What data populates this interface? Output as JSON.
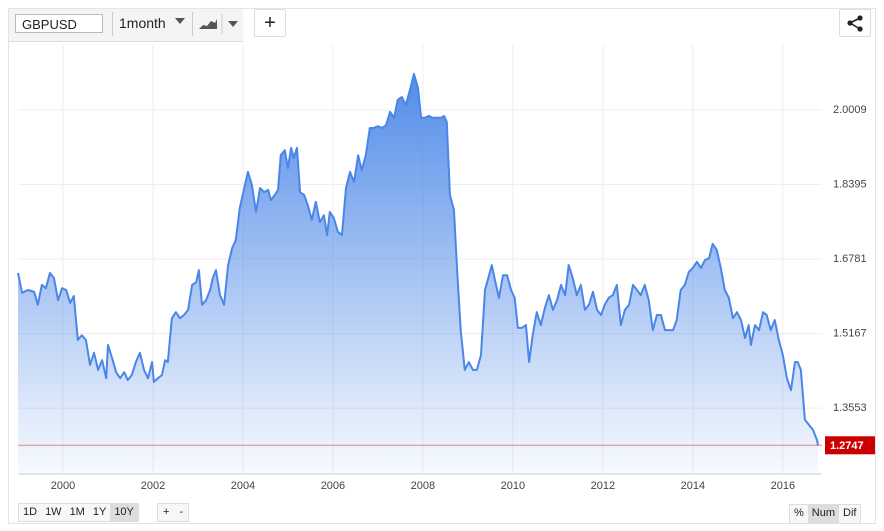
{
  "toolbar": {
    "symbol": "GBPUSD",
    "interval": "1month",
    "add": "+"
  },
  "range_buttons": [
    "1D",
    "1W",
    "1M",
    "1Y",
    "10Y"
  ],
  "zoom_buttons": [
    "+",
    "-"
  ],
  "mode_buttons": [
    "%",
    "Num",
    "Dif"
  ],
  "chart_data": {
    "type": "area",
    "x": [
      1999.0,
      1999.09,
      1999.22,
      1999.36,
      1999.44,
      1999.53,
      1999.62,
      1999.71,
      1999.8,
      1999.89,
      1999.98,
      2000.07,
      2000.16,
      2000.24,
      2000.33,
      2000.42,
      2000.51,
      2000.6,
      2000.69,
      2000.78,
      2000.87,
      2000.96,
      2001.0,
      2001.09,
      2001.18,
      2001.27,
      2001.36,
      2001.44,
      2001.53,
      2001.62,
      2001.71,
      2001.8,
      2001.89,
      2001.98,
      2002.02,
      2002.11,
      2002.2,
      2002.27,
      2002.33,
      2002.42,
      2002.51,
      2002.6,
      2002.69,
      2002.78,
      2002.87,
      2002.96,
      2003.02,
      2003.09,
      2003.18,
      2003.27,
      2003.33,
      2003.4,
      2003.49,
      2003.58,
      2003.67,
      2003.76,
      2003.84,
      2003.93,
      2004.02,
      2004.11,
      2004.2,
      2004.29,
      2004.38,
      2004.47,
      2004.56,
      2004.62,
      2004.71,
      2004.78,
      2004.84,
      2004.93,
      2005.0,
      2005.07,
      2005.13,
      2005.2,
      2005.27,
      2005.36,
      2005.44,
      2005.53,
      2005.62,
      2005.71,
      2005.8,
      2005.87,
      2005.93,
      2006.02,
      2006.11,
      2006.2,
      2006.29,
      2006.38,
      2006.47,
      2006.56,
      2006.64,
      2006.73,
      2006.82,
      2006.91,
      2007.0,
      2007.09,
      2007.18,
      2007.27,
      2007.36,
      2007.44,
      2007.53,
      2007.62,
      2007.71,
      2007.8,
      2007.89,
      2007.96,
      2008.04,
      2008.13,
      2008.22,
      2008.31,
      2008.4,
      2008.47,
      2008.53,
      2008.6,
      2008.69,
      2008.76,
      2008.84,
      2008.93,
      2009.02,
      2009.11,
      2009.2,
      2009.29,
      2009.38,
      2009.47,
      2009.53,
      2009.6,
      2009.69,
      2009.78,
      2009.87,
      2009.96,
      2010.04,
      2010.11,
      2010.2,
      2010.29,
      2010.36,
      2010.44,
      2010.53,
      2010.62,
      2010.71,
      2010.8,
      2010.89,
      2010.98,
      2011.07,
      2011.16,
      2011.24,
      2011.33,
      2011.42,
      2011.51,
      2011.6,
      2011.69,
      2011.78,
      2011.87,
      2011.96,
      2012.04,
      2012.13,
      2012.22,
      2012.31,
      2012.4,
      2012.49,
      2012.58,
      2012.67,
      2012.76,
      2012.84,
      2012.93,
      2013.02,
      2013.11,
      2013.2,
      2013.29,
      2013.38,
      2013.47,
      2013.56,
      2013.64,
      2013.73,
      2013.82,
      2013.91,
      2014.0,
      2014.09,
      2014.18,
      2014.27,
      2014.36,
      2014.44,
      2014.53,
      2014.62,
      2014.71,
      2014.8,
      2014.89,
      2014.98,
      2015.07,
      2015.16,
      2015.24,
      2015.29,
      2015.38,
      2015.47,
      2015.56,
      2015.64,
      2015.73,
      2015.82,
      2015.91,
      2016.0,
      2016.09,
      2016.18,
      2016.27,
      2016.33,
      2016.4,
      2016.49,
      2016.58,
      2016.67,
      2016.76,
      2016.78
    ],
    "series": [
      {
        "name": "GBPUSD",
        "color": "#4a86e8",
        "values": [
          1.648,
          1.605,
          1.611,
          1.607,
          1.579,
          1.622,
          1.615,
          1.648,
          1.637,
          1.589,
          1.615,
          1.611,
          1.583,
          1.598,
          1.503,
          1.513,
          1.503,
          1.449,
          1.475,
          1.438,
          1.459,
          1.42,
          1.492,
          1.464,
          1.433,
          1.42,
          1.433,
          1.416,
          1.427,
          1.455,
          1.475,
          1.438,
          1.42,
          1.455,
          1.412,
          1.42,
          1.427,
          1.459,
          1.455,
          1.55,
          1.563,
          1.55,
          1.557,
          1.568,
          1.622,
          1.628,
          1.654,
          1.579,
          1.589,
          1.611,
          1.637,
          1.654,
          1.6,
          1.579,
          1.665,
          1.702,
          1.719,
          1.789,
          1.828,
          1.867,
          1.838,
          1.78,
          1.832,
          1.823,
          1.828,
          1.806,
          1.817,
          1.828,
          1.903,
          1.914,
          1.875,
          1.919,
          1.897,
          1.919,
          1.823,
          1.817,
          1.795,
          1.763,
          1.802,
          1.758,
          1.773,
          1.73,
          1.78,
          1.767,
          1.737,
          1.73,
          1.832,
          1.867,
          1.845,
          1.903,
          1.871,
          1.903,
          1.962,
          1.962,
          1.966,
          1.962,
          1.968,
          1.997,
          1.984,
          2.023,
          2.029,
          2.012,
          2.044,
          2.079,
          2.049,
          1.984,
          1.984,
          1.988,
          1.984,
          1.984,
          1.984,
          1.988,
          1.975,
          1.817,
          1.784,
          1.654,
          1.524,
          1.438,
          1.455,
          1.438,
          1.438,
          1.47,
          1.611,
          1.643,
          1.665,
          1.633,
          1.594,
          1.643,
          1.643,
          1.611,
          1.594,
          1.529,
          1.529,
          1.535,
          1.455,
          1.513,
          1.563,
          1.535,
          1.572,
          1.6,
          1.568,
          1.589,
          1.622,
          1.6,
          1.665,
          1.637,
          1.6,
          1.622,
          1.568,
          1.579,
          1.607,
          1.568,
          1.557,
          1.579,
          1.594,
          1.6,
          1.622,
          1.535,
          1.568,
          1.579,
          1.622,
          1.611,
          1.6,
          1.622,
          1.589,
          1.524,
          1.557,
          1.557,
          1.524,
          1.524,
          1.524,
          1.546,
          1.611,
          1.622,
          1.65,
          1.659,
          1.672,
          1.659,
          1.676,
          1.68,
          1.711,
          1.698,
          1.659,
          1.611,
          1.594,
          1.55,
          1.563,
          1.546,
          1.507,
          1.535,
          1.492,
          1.535,
          1.524,
          1.563,
          1.557,
          1.524,
          1.546,
          1.503,
          1.47,
          1.42,
          1.394,
          1.455,
          1.455,
          1.438,
          1.33,
          1.319,
          1.308,
          1.286,
          1.2747
        ]
      }
    ],
    "last_value_color": "#cc0000",
    "xlim": [
      1999.0,
      2016.87
    ],
    "ylim": [
      1.2125,
      2.1417
    ],
    "xticks": [
      2000,
      2002,
      2004,
      2006,
      2008,
      2010,
      2012,
      2014,
      2016
    ],
    "yticks": [
      1.3553,
      1.5167,
      1.6781,
      1.8395,
      2.0009
    ],
    "grid": true
  }
}
